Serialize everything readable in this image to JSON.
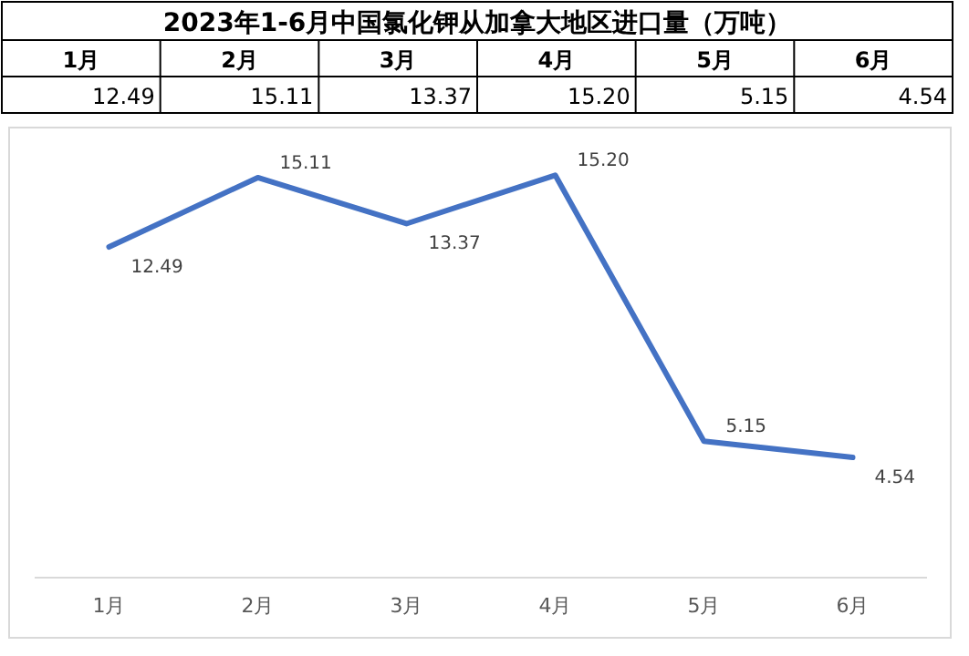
{
  "chart_data": {
    "type": "line",
    "title": "2023年1-6月中国氯化钾从加拿大地区进口量（万吨）",
    "categories": [
      "1月",
      "2月",
      "3月",
      "4月",
      "5月",
      "6月"
    ],
    "series": [
      {
        "color": "#4472c4",
        "values": [
          12.49,
          15.11,
          13.37,
          15.2,
          5.15,
          4.54
        ],
        "value_labels": [
          "12.49",
          "15.11",
          "13.37",
          "15.20",
          "5.15",
          "4.54"
        ]
      }
    ],
    "ylim": [
      0,
      17
    ]
  }
}
